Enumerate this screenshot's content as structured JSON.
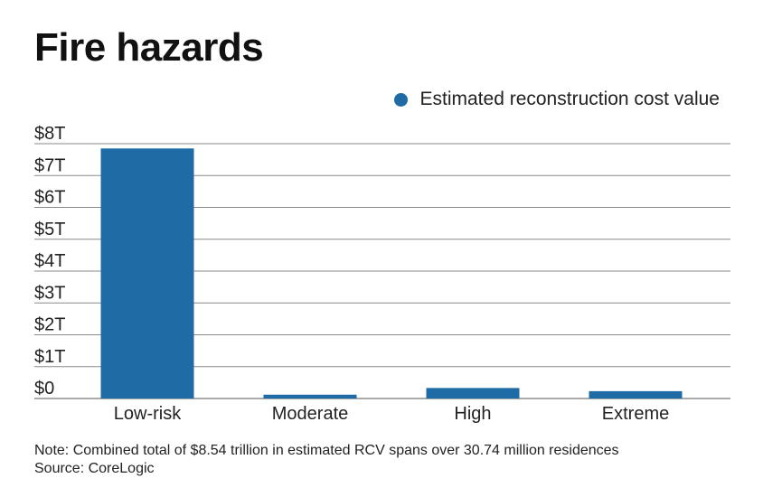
{
  "title": "Fire hazards",
  "legend": {
    "label": "Estimated reconstruction cost value",
    "color": "#1f6ba5"
  },
  "footer": {
    "note": "Note: Combined total of $8.54 trillion in estimated RCV spans over 30.74 million residences",
    "source": "Source: CoreLogic"
  },
  "chart_data": {
    "type": "bar",
    "title": "Fire hazards",
    "xlabel": "",
    "ylabel": "",
    "categories": [
      "Low-risk",
      "Moderate",
      "High",
      "Extreme"
    ],
    "series": [
      {
        "name": "Estimated reconstruction cost value",
        "values": [
          7.85,
          0.12,
          0.33,
          0.23
        ],
        "color": "#1f6ba5"
      }
    ],
    "ylim": [
      0,
      8
    ],
    "yticks": [
      0,
      1,
      2,
      3,
      4,
      5,
      6,
      7,
      8
    ],
    "ytick_labels": [
      "$0",
      "$1T",
      "$2T",
      "$3T",
      "$4T",
      "$5T",
      "$6T",
      "$7T",
      "$8T"
    ],
    "unit": "trillion USD",
    "grid": true,
    "legend_position": "top-right"
  }
}
